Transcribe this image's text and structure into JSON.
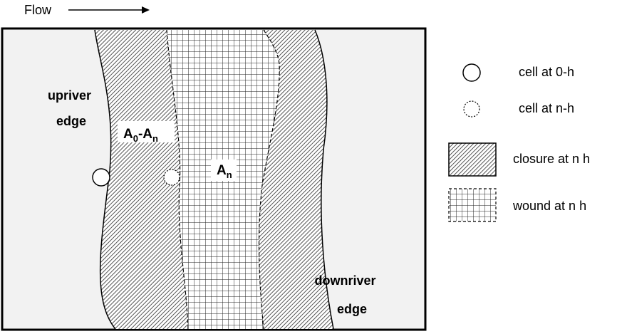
{
  "flow": {
    "label": "Flow"
  },
  "edges": {
    "upriver": [
      "upriver",
      "edge"
    ],
    "downriver": [
      "downriver",
      "edge"
    ]
  },
  "areas": {
    "closure_label": {
      "main1": "A",
      "sub1": "0",
      "dash": "-A",
      "sub2": "n"
    },
    "wound_label": {
      "main": "A",
      "sub": "n"
    }
  },
  "legend": {
    "items": [
      {
        "icon": "cell-initial-icon",
        "label": "cell at 0-h"
      },
      {
        "icon": "cell-later-icon",
        "label": "cell at n-h"
      },
      {
        "icon": "closure-swatch-icon",
        "label": "closure at n h"
      },
      {
        "icon": "wound-swatch-icon",
        "label": "wound at n h"
      }
    ]
  },
  "colors": {
    "background": "#f2f2f2",
    "frame": "#000000",
    "label_box": "#ffffff"
  }
}
